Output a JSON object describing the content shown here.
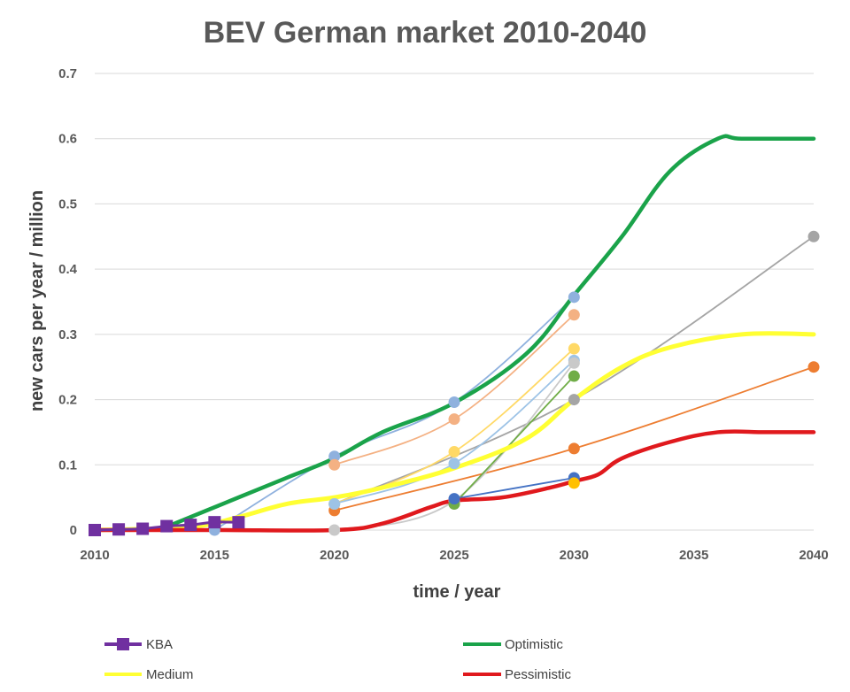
{
  "chart_data": {
    "type": "line",
    "title": "BEV German market 2010-2040",
    "xlabel": "time / year",
    "ylabel": "new cars per year / million",
    "xlim": [
      2010,
      2040
    ],
    "ylim": [
      0,
      0.7
    ],
    "x_ticks": [
      "2010",
      "2015",
      "2020",
      "2025",
      "2030",
      "2035",
      "2040"
    ],
    "y_ticks": [
      "0",
      "0.1",
      "0.2",
      "0.3",
      "0.4",
      "0.5",
      "0.6",
      "0.7"
    ],
    "grid": true,
    "legend_position": "bottom",
    "series": [
      {
        "name": "Optimistic",
        "color": "#1aa34a",
        "x": [
          2013,
          2016,
          2018,
          2020,
          2022,
          2025,
          2028,
          2030,
          2032,
          2034,
          2036,
          2037,
          2040
        ],
        "y": [
          0.005,
          0.05,
          0.08,
          0.11,
          0.15,
          0.195,
          0.27,
          0.36,
          0.45,
          0.55,
          0.6,
          0.6,
          0.6
        ]
      },
      {
        "name": "Medium",
        "color": "#ffff33",
        "x": [
          2010,
          2014,
          2016,
          2018,
          2020,
          2022,
          2025,
          2028,
          2030,
          2032,
          2034,
          2037,
          2040
        ],
        "y": [
          0,
          0.005,
          0.02,
          0.04,
          0.05,
          0.065,
          0.095,
          0.14,
          0.2,
          0.25,
          0.28,
          0.3,
          0.3
        ]
      },
      {
        "name": "Pessimistic",
        "color": "#e0191d",
        "x": [
          2010,
          2015,
          2020,
          2022,
          2024,
          2025,
          2027,
          2029,
          2030,
          2031,
          2032,
          2034,
          2036,
          2038,
          2040
        ],
        "y": [
          0,
          0,
          0,
          0.01,
          0.035,
          0.045,
          0.05,
          0.065,
          0.075,
          0.085,
          0.11,
          0.135,
          0.15,
          0.15,
          0.15
        ]
      },
      {
        "name": "KBA",
        "color": "#7030a0",
        "x": [
          2010,
          2011,
          2012,
          2013,
          2014,
          2015,
          2016
        ],
        "y": [
          0.0,
          0.001,
          0.002,
          0.006,
          0.008,
          0.012,
          0.012
        ]
      }
    ],
    "scenario_series": [
      {
        "color": "#8fb1de",
        "x": [
          2015,
          2020,
          2025,
          2030
        ],
        "y": [
          0.0,
          0.113,
          0.196,
          0.357
        ]
      },
      {
        "color": "#f4b183",
        "x": [
          2020,
          2025,
          2030
        ],
        "y": [
          0.1,
          0.17,
          0.33
        ]
      },
      {
        "color": "#a5a5a5",
        "x": [
          2020,
          2030,
          2040
        ],
        "y": [
          0.04,
          0.2,
          0.45
        ]
      },
      {
        "color": "#ed7d31",
        "x": [
          2020,
          2030,
          2040
        ],
        "y": [
          0.03,
          0.125,
          0.25
        ]
      },
      {
        "color": "#ffd966",
        "x": [
          2020,
          2025,
          2030
        ],
        "y": [
          0.04,
          0.12,
          0.278
        ]
      },
      {
        "color": "#9dc3e6",
        "x": [
          2020,
          2025,
          2030
        ],
        "y": [
          0.04,
          0.102,
          0.26
        ]
      },
      {
        "color": "#c9c9c9",
        "x": [
          2020,
          2025,
          2030
        ],
        "y": [
          0.0,
          0.045,
          0.256
        ]
      },
      {
        "color": "#70ad47",
        "x": [
          2025,
          2030
        ],
        "y": [
          0.04,
          0.236
        ]
      },
      {
        "color": "#4472c4",
        "x": [
          2025,
          2030
        ],
        "y": [
          0.048,
          0.08
        ]
      },
      {
        "color": "#ffc000",
        "x": [
          2030
        ],
        "y": [
          0.072
        ]
      }
    ]
  }
}
